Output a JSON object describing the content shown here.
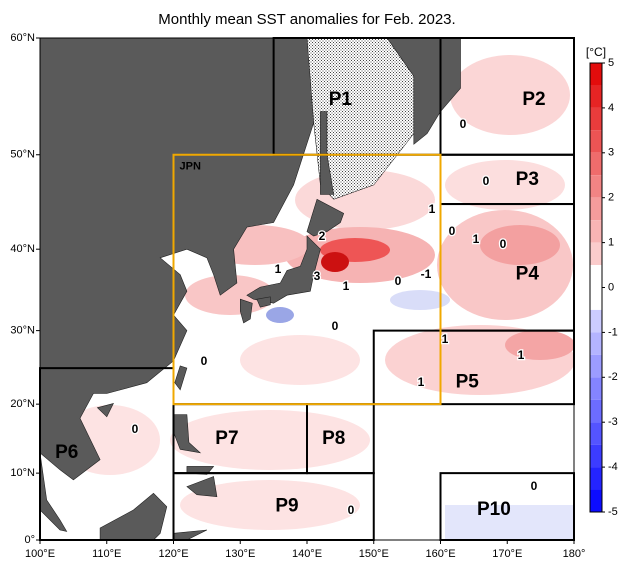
{
  "title": "Monthly mean SST anomalies for Feb. 2023.",
  "colorbar_unit": "[°C]",
  "colorbar_ticks": [
    5,
    4,
    3,
    2,
    1,
    0,
    -1,
    -2,
    -3,
    -4,
    -5
  ],
  "xticks": [
    {
      "value": 100,
      "label": "100°E"
    },
    {
      "value": 110,
      "label": "110°E"
    },
    {
      "value": 120,
      "label": "120°E"
    },
    {
      "value": 130,
      "label": "130°E"
    },
    {
      "value": 140,
      "label": "140°E"
    },
    {
      "value": 150,
      "label": "150°E"
    },
    {
      "value": 160,
      "label": "160°E"
    },
    {
      "value": 170,
      "label": "170°E"
    },
    {
      "value": 180,
      "label": "180°"
    }
  ],
  "yticks": [
    {
      "value": 0,
      "label": "0°"
    },
    {
      "value": 10,
      "label": "10°N"
    },
    {
      "value": 20,
      "label": "20°N"
    },
    {
      "value": 30,
      "label": "30°N"
    },
    {
      "value": 40,
      "label": "40°N"
    },
    {
      "value": 50,
      "label": "50°N"
    },
    {
      "value": 60,
      "label": "60°N"
    }
  ],
  "xlim": [
    100,
    180
  ],
  "ylim": [
    0,
    60
  ],
  "box_label": "JPN",
  "regions": [
    "P1",
    "P2",
    "P3",
    "P4",
    "P5",
    "P6",
    "P7",
    "P8",
    "P9",
    "P10"
  ],
  "contour_labels": [
    "0",
    "0",
    "1",
    "2",
    "1",
    "3",
    "1",
    "0",
    "-1",
    "0",
    "1",
    "0",
    "0",
    "1",
    "1",
    "0",
    "1",
    "0",
    "0",
    "0"
  ]
}
